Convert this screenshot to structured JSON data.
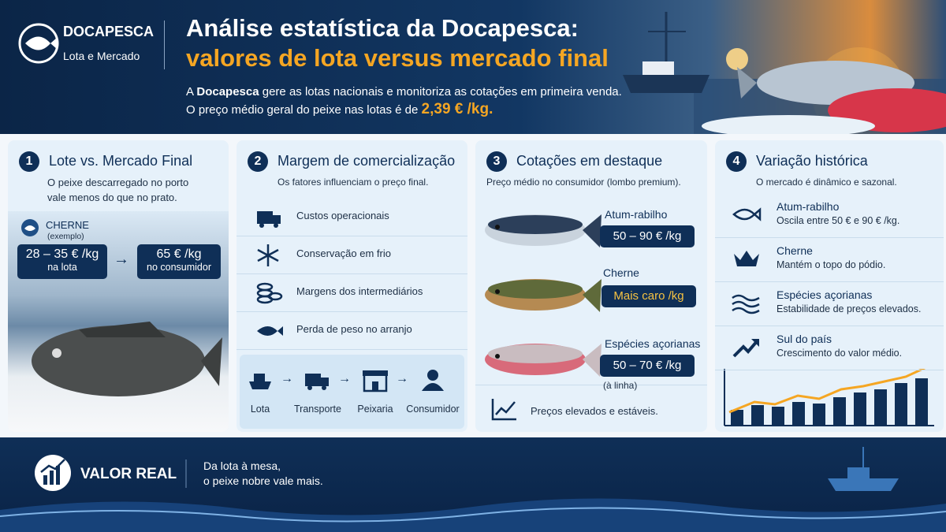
{
  "header": {
    "brand": "DOCAPESCA",
    "brand_sub": "Lota e Mercado",
    "title_line1": "Análise estatística da Docapesca:",
    "title_line2": "valores de lota versus mercado final",
    "intro_prefix": "A",
    "intro_brand": "Docapesca",
    "intro_rest": "gere as lotas nacionais e monitoriza as cotações em primeira venda.",
    "intro_line2": "O preço médio geral do peixe nas lotas é de",
    "intro_price": "2,39 € /kg."
  },
  "panels": [
    {
      "number": "1",
      "title": "Lote vs. Mercado Final",
      "text": "O peixe descarregado no porto vale menos do que no prato.",
      "species": "CHERNE",
      "species_note": "(exemplo)",
      "from_value": "28 – 35 € /kg",
      "from_label": "na lota",
      "to_value": "65 € /kg",
      "to_label": "no consumidor"
    },
    {
      "number": "2",
      "title": "Margem de comercialização",
      "subtitle": "Os fatores influenciam o preço final.",
      "items": [
        "Custos operacionais",
        "Conservação em frio",
        "Margens dos intermediários",
        "Perda de peso no arranjo"
      ],
      "flow": [
        "Lota",
        "Transporte",
        "Peixaria",
        "Consumidor"
      ]
    },
    {
      "number": "3",
      "title": "Cotações em destaque",
      "subtitle": "Preço médio no consumidor (lombo premium).",
      "items": [
        {
          "name": "Atum-rabilho",
          "price": "50 – 90 € /kg"
        },
        {
          "name": "Cherne",
          "price": "Mais caro /kg"
        },
        {
          "name": "Espécies açorianas",
          "price": "50 – 70 € /kg",
          "note": "(à linha)"
        }
      ],
      "footer": "Preços elevados e estáveis."
    },
    {
      "number": "4",
      "title": "Variação histórica",
      "subtitle": "O mercado é dinâmico e sazonal.",
      "items": [
        {
          "name": "Atum-rabilho",
          "text": "Oscila entre 50 € e 90 € /kg."
        },
        {
          "name": "Cherne",
          "text": "Mantém o topo do pódio."
        },
        {
          "name": "Espécies açorianas",
          "text": "Estabilidade de preços elevados."
        },
        {
          "name": "Sul do país",
          "text": "Crescimento do valor médio."
        }
      ]
    }
  ],
  "footer": {
    "label": "VALOR REAL",
    "line1": "Da lota à mesa,",
    "line2": "o peixe nobre vale mais."
  }
}
